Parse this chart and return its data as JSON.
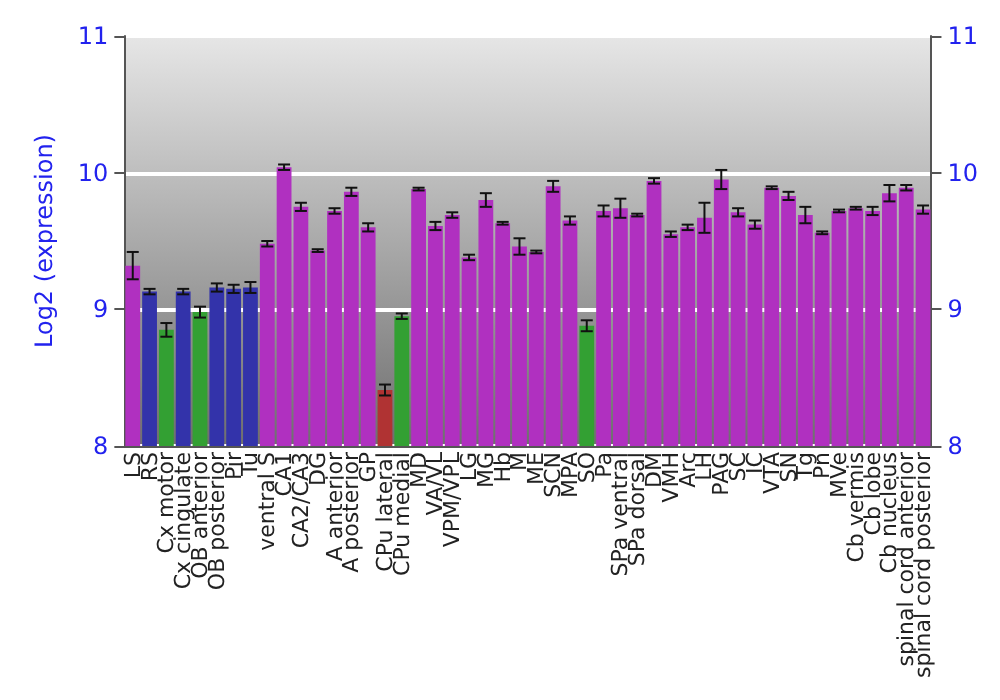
{
  "chart_data": {
    "type": "bar",
    "ylabel": "Log2 (expression)",
    "categories": [
      "LS",
      "RS",
      "Cx motor",
      "Cx cingulate",
      "OB anterior",
      "OB posterior",
      "Pir",
      "Tu",
      "ventral S",
      "CA1",
      "CA2/CA3",
      "DG",
      "A anterior",
      "A posterior",
      "GP",
      "CPu lateral",
      "CPu medial",
      "MD",
      "VA/VL",
      "VPM/VPL",
      "LG",
      "MG",
      "Hb",
      "M",
      "ME",
      "SCN",
      "MPA",
      "SO",
      "Pa",
      "SPa ventral",
      "SPa dorsal",
      "DM",
      "VMH",
      "Arc",
      "LH",
      "PAG",
      "SC",
      "IC",
      "VTA",
      "SN",
      "Tg",
      "Pn",
      "MVe",
      "Cb vermis",
      "Cb lobe",
      "Cb nucleus",
      "spinal cord anterior",
      "spinal cord posterior"
    ],
    "values": [
      9.32,
      9.13,
      8.85,
      9.13,
      8.98,
      9.16,
      9.15,
      9.16,
      9.48,
      10.04,
      9.75,
      9.43,
      9.72,
      9.86,
      9.6,
      8.41,
      8.95,
      9.88,
      9.61,
      9.69,
      9.38,
      9.8,
      9.63,
      9.46,
      9.42,
      9.9,
      9.65,
      8.88,
      9.72,
      9.74,
      9.69,
      9.94,
      9.55,
      9.6,
      9.67,
      9.95,
      9.71,
      9.62,
      9.89,
      9.83,
      9.69,
      9.56,
      9.72,
      9.74,
      9.72,
      9.85,
      9.89,
      9.73
    ],
    "errors": [
      0.1,
      0.02,
      0.05,
      0.02,
      0.04,
      0.03,
      0.03,
      0.04,
      0.02,
      0.02,
      0.03,
      0.01,
      0.02,
      0.03,
      0.03,
      0.04,
      0.02,
      0.01,
      0.03,
      0.02,
      0.02,
      0.05,
      0.01,
      0.06,
      0.01,
      0.04,
      0.03,
      0.04,
      0.04,
      0.07,
      0.01,
      0.02,
      0.02,
      0.02,
      0.11,
      0.07,
      0.03,
      0.03,
      0.01,
      0.03,
      0.06,
      0.01,
      0.01,
      0.01,
      0.03,
      0.06,
      0.02,
      0.03
    ],
    "colors": [
      "#b030c0",
      "#3333aa",
      "#33a033",
      "#3333aa",
      "#33a033",
      "#3333aa",
      "#3333aa",
      "#3333aa",
      "#b030c0",
      "#b030c0",
      "#b030c0",
      "#b030c0",
      "#b030c0",
      "#b030c0",
      "#b030c0",
      "#b03333",
      "#33a033",
      "#b030c0",
      "#b030c0",
      "#b030c0",
      "#b030c0",
      "#b030c0",
      "#b030c0",
      "#b030c0",
      "#b030c0",
      "#b030c0",
      "#b030c0",
      "#33a033",
      "#b030c0",
      "#b030c0",
      "#b030c0",
      "#b030c0",
      "#b030c0",
      "#b030c0",
      "#b030c0",
      "#b030c0",
      "#b030c0",
      "#b030c0",
      "#b030c0",
      "#b030c0",
      "#b030c0",
      "#b030c0",
      "#b030c0",
      "#b030c0",
      "#b030c0",
      "#b030c0",
      "#b030c0",
      "#b030c0"
    ],
    "ylim": [
      8,
      11
    ],
    "yticks": [
      8,
      9,
      10,
      11
    ],
    "y2lim": [
      8,
      11
    ],
    "y2ticks": [
      8,
      9,
      10,
      11
    ],
    "grid": "y"
  }
}
